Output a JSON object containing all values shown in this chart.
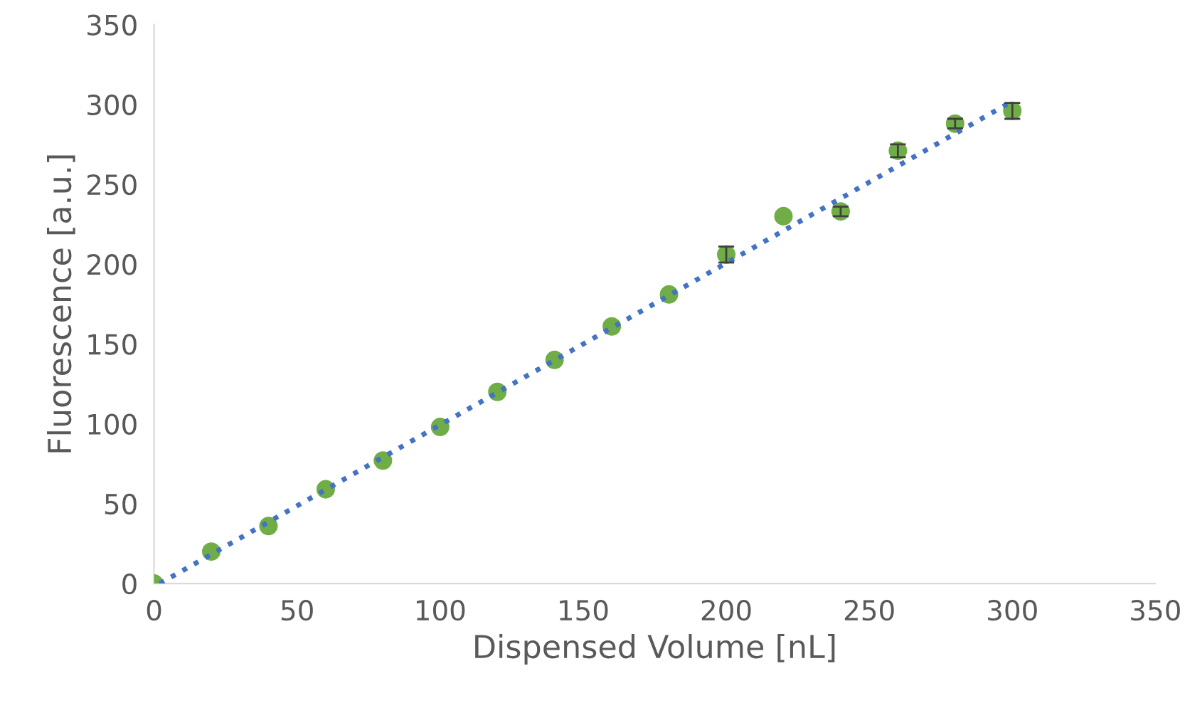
{
  "chart_data": {
    "type": "scatter",
    "xlabel": "Dispensed Volume [nL]",
    "ylabel": "Fluorescence [a.u.]",
    "xlim": [
      0,
      350
    ],
    "ylim": [
      0,
      350
    ],
    "xticks": [
      0,
      50,
      100,
      150,
      200,
      250,
      300,
      350
    ],
    "yticks": [
      0,
      50,
      100,
      150,
      200,
      250,
      300,
      350
    ],
    "grid": false,
    "series": [
      {
        "marker": "circle",
        "color": "#70ad47",
        "x": [
          0,
          20,
          40,
          60,
          80,
          100,
          120,
          140,
          160,
          180,
          200,
          220,
          240,
          260,
          280,
          300
        ],
        "values": [
          0,
          20,
          36,
          59,
          77,
          98,
          120,
          140,
          161,
          181,
          206,
          230,
          233,
          271,
          288,
          296
        ],
        "errors": [
          null,
          null,
          null,
          null,
          null,
          null,
          null,
          null,
          null,
          null,
          5,
          null,
          3,
          4,
          3,
          5
        ]
      },
      {
        "type": "line",
        "color": "#4472c4",
        "line_style": "dotted",
        "marker": "none",
        "x": [
          2,
          300
        ],
        "values": [
          0,
          302
        ]
      }
    ]
  }
}
